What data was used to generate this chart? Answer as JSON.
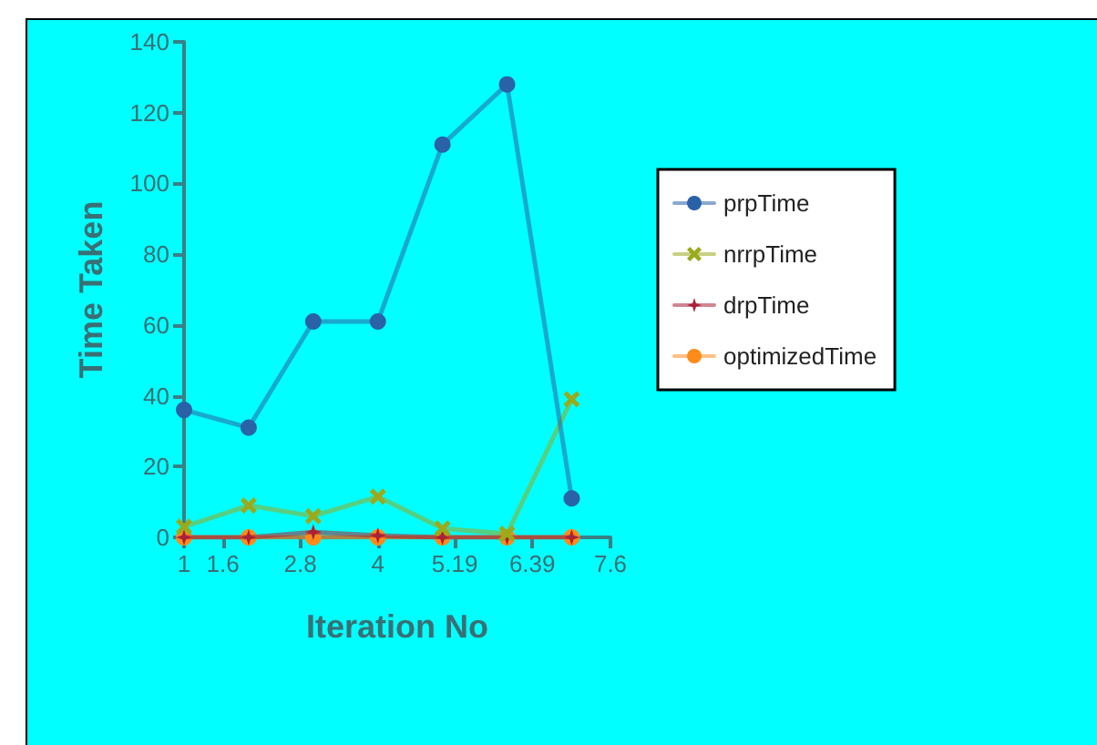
{
  "chart_data": {
    "type": "line",
    "xlabel": "Iteration No",
    "ylabel": "Time Taken",
    "x": [
      1,
      2,
      3,
      4,
      5,
      6,
      7
    ],
    "series": [
      {
        "name": "prpTime",
        "color": "#2a62a8",
        "marker": "circle",
        "values": [
          36,
          31,
          61,
          61,
          111,
          128,
          11
        ]
      },
      {
        "name": "nrrpTime",
        "color": "#9aaa1c",
        "marker": "cross",
        "values": [
          3,
          9,
          6,
          11.5,
          2.5,
          1,
          39
        ]
      },
      {
        "name": "drpTime",
        "color": "#a8233a",
        "marker": "star",
        "values": [
          0,
          0,
          1.5,
          0.5,
          0,
          0,
          0
        ]
      },
      {
        "name": "optimizedTime",
        "color": "#ff8c1a",
        "marker": "circle",
        "values": [
          0,
          0,
          0,
          0,
          0,
          0,
          0
        ]
      }
    ],
    "xlim": [
      1,
      7.6
    ],
    "xticks": [
      1,
      1.6,
      2.8,
      4,
      5.19,
      6.39,
      7.6
    ],
    "ylim": [
      0,
      140
    ],
    "yticks": [
      0,
      20,
      40,
      60,
      80,
      100,
      120,
      140
    ],
    "grid": false,
    "legend": "right",
    "line_style": "solid"
  }
}
